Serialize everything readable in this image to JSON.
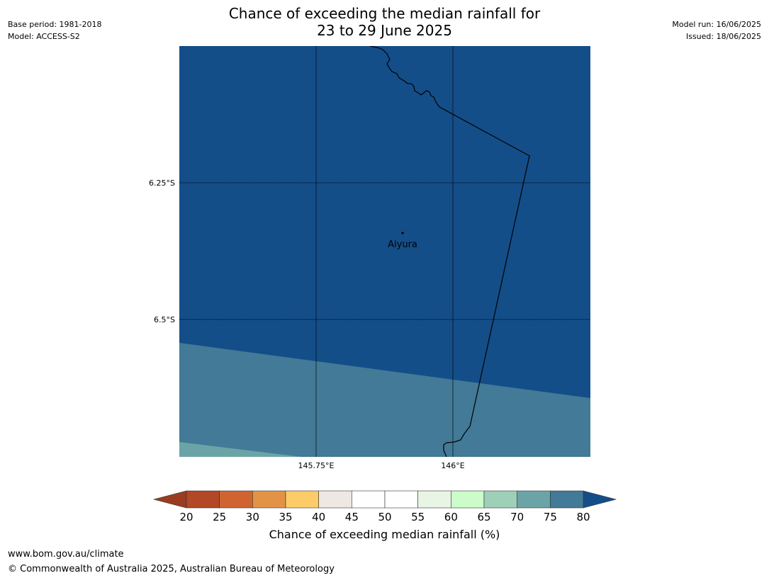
{
  "title": {
    "line1": "Chance of exceeding the median rainfall for",
    "line2": "23 to 29 June 2025"
  },
  "meta_left": {
    "base_period": "Base period: 1981-2018",
    "model": "Model: ACCESS-S2"
  },
  "meta_right": {
    "model_run": "Model run: 16/06/2025",
    "issued": "Issued: 18/06/2025"
  },
  "map": {
    "lat_labels": [
      "6.25°S",
      "6.5°S"
    ],
    "lon_labels": [
      "145.75°E",
      "146°E"
    ],
    "place": "Aiyura",
    "colors": {
      "band_80plus": "#144e89",
      "band_75_80": "#427a97",
      "band_70_75": "#6ba4a7"
    }
  },
  "colorbar": {
    "label": "Chance of exceeding median rainfall (%)",
    "ticks": [
      "20",
      "25",
      "30",
      "35",
      "40",
      "45",
      "50",
      "55",
      "60",
      "65",
      "70",
      "75",
      "80"
    ],
    "colors": [
      "#b24826",
      "#cf6431",
      "#e39346",
      "#fdcb67",
      "#ede8e3",
      "#ffffff",
      "#ffffff",
      "#e8f5e5",
      "#cbfcca",
      "#9ecfb8",
      "#6ba4a7",
      "#427a97"
    ],
    "under_color": "#9b3b20",
    "over_color": "#144e89"
  },
  "footer": {
    "url": "www.bom.gov.au/climate",
    "copyright": "© Commonwealth of Australia 2025, Australian Bureau of Meteorology"
  }
}
